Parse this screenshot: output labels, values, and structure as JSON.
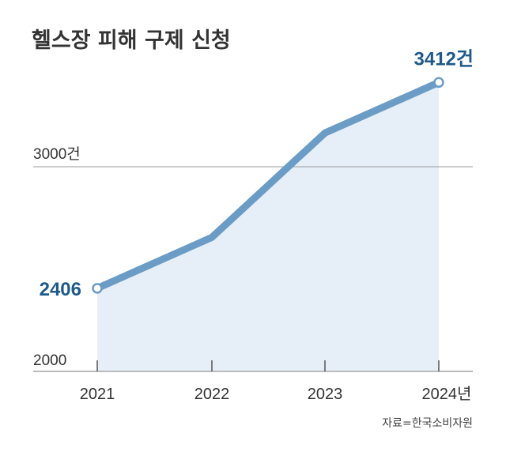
{
  "chart_data": {
    "type": "area",
    "title": "헬스장 피해 구제 신청",
    "categories": [
      "2021",
      "2022",
      "2023",
      "2024년"
    ],
    "values": [
      2406,
      2655,
      3165,
      3412
    ],
    "data_labels": [
      {
        "index": 0,
        "text": "2406"
      },
      {
        "index": 3,
        "text": "3412건"
      }
    ],
    "y_ticks": [
      {
        "value": 2000,
        "label": "2000"
      },
      {
        "value": 3000,
        "label": "3000건"
      }
    ],
    "ylim": [
      2000,
      3450
    ],
    "xlabel": "",
    "ylabel": "",
    "grid": true,
    "source": "자료=한국소비자원",
    "colors": {
      "line": "#6b9cc6",
      "fill": "#e6eef8",
      "label": "#1e5a8a",
      "axis": "#bbbbbb"
    }
  }
}
